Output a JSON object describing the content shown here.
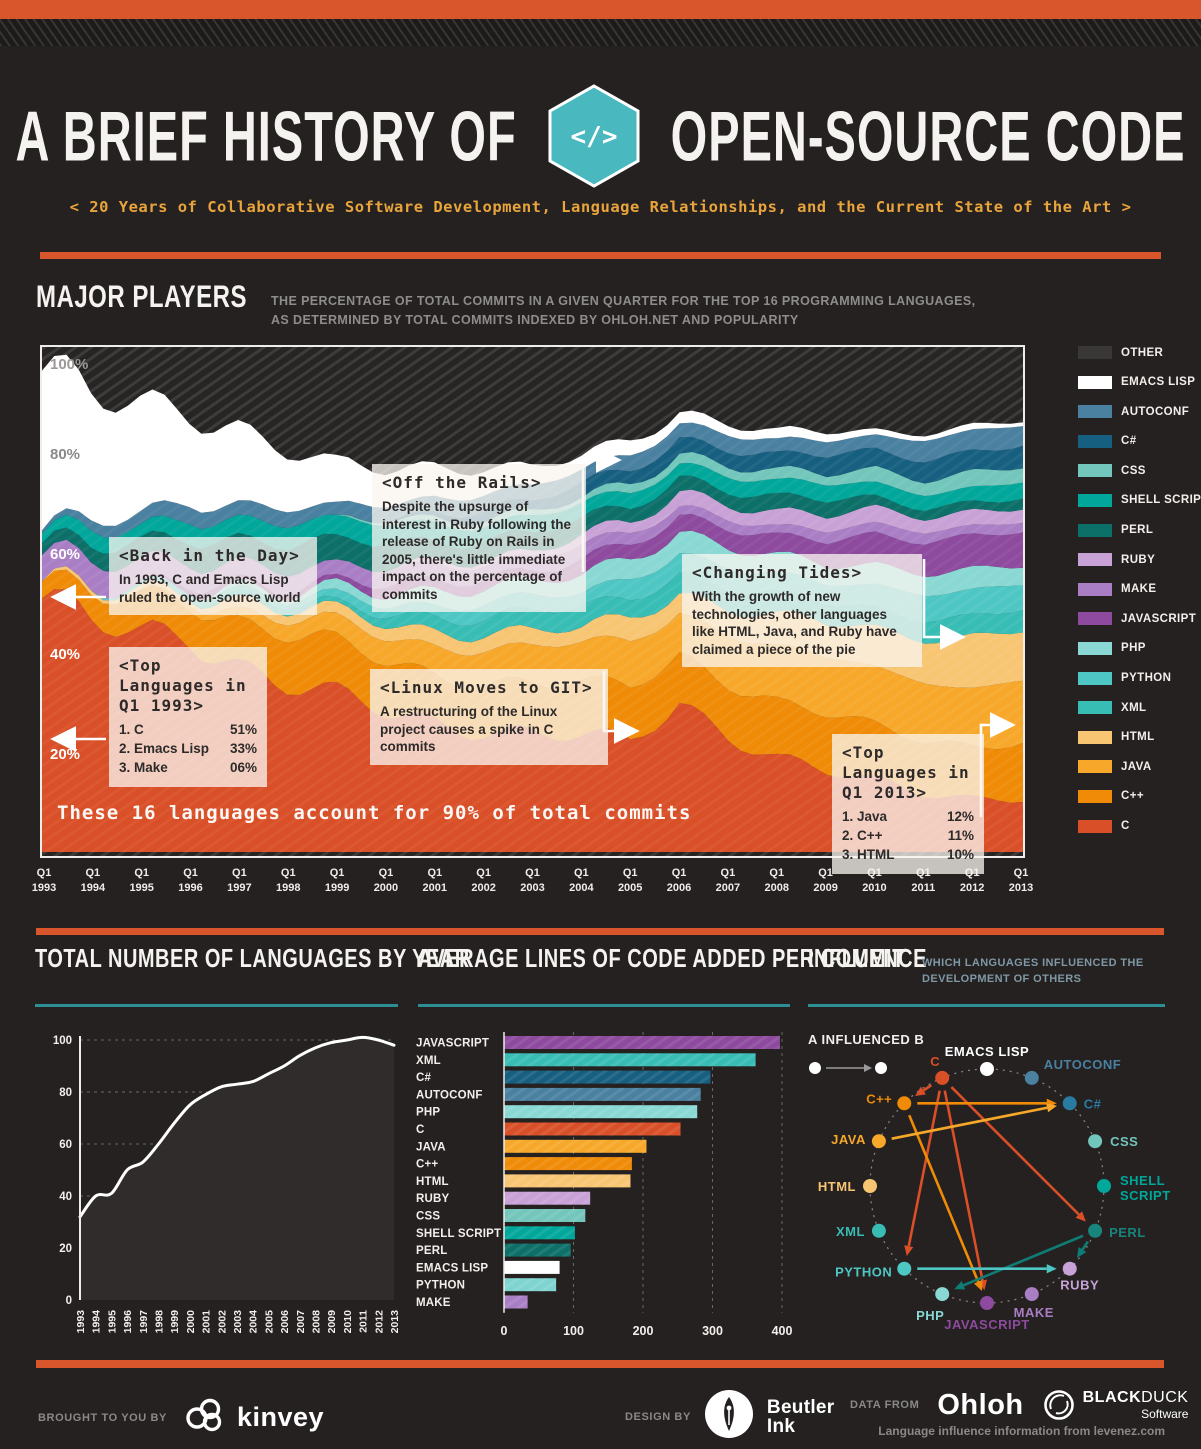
{
  "header": {
    "title_left": "A BRIEF HISTORY OF",
    "title_right": "OPEN-SOURCE CODE",
    "hex_glyph": "</>",
    "subtitle": "< 20 Years of Collaborative Software Development, Language Relationships, and the Current State of the Art >"
  },
  "major_players": {
    "title": "MAJOR PLAYERS",
    "description_line1": "THE PERCENTAGE OF TOTAL COMMITS IN A GIVEN QUARTER FOR THE TOP 16 PROGRAMMING LANGUAGES,",
    "description_line2": "AS DETERMINED BY TOTAL COMMITS INDEXED BY OHLOH.NET AND POPULARITY",
    "footnote": "These 16 languages account for 90% of total commits",
    "y_ticks": [
      "100%",
      "80%",
      "60%",
      "40%",
      "20%"
    ],
    "legend": [
      {
        "label": "OTHER",
        "color": "#3a3737"
      },
      {
        "label": "EMACS LISP",
        "color": "#ffffff"
      },
      {
        "label": "AUTOCONF",
        "color": "#4a80a0"
      },
      {
        "label": "C#",
        "color": "#175f80"
      },
      {
        "label": "CSS",
        "color": "#72c6bb"
      },
      {
        "label": "SHELL SCRIPT",
        "color": "#00a79a"
      },
      {
        "label": "PERL",
        "color": "#0c6f68"
      },
      {
        "label": "RUBY",
        "color": "#c8a2d6"
      },
      {
        "label": "MAKE",
        "color": "#aa7ec5"
      },
      {
        "label": "JAVASCRIPT",
        "color": "#8d4a9e"
      },
      {
        "label": "PHP",
        "color": "#8ad8d4"
      },
      {
        "label": "PYTHON",
        "color": "#4ec7c4"
      },
      {
        "label": "XML",
        "color": "#38bdb5"
      },
      {
        "label": "HTML",
        "color": "#f8c573"
      },
      {
        "label": "JAVA",
        "color": "#f7a82a"
      },
      {
        "label": "C++",
        "color": "#ef8b06"
      },
      {
        "label": "C",
        "color": "#d94f28"
      }
    ],
    "annotations": [
      {
        "title": "<Back in the Day>",
        "body": "In 1993, C and Emacs Lisp ruled the open-source world"
      },
      {
        "title": "<Top Languages in Q1 1993>",
        "items": [
          [
            "1. C",
            "51%"
          ],
          [
            "2. Emacs Lisp",
            "33%"
          ],
          [
            "3. Make",
            "06%"
          ]
        ]
      },
      {
        "title": "<Off the Rails>",
        "body": "Despite the upsurge of interest in Ruby following the release of Ruby on Rails in 2005, there's little immediate impact on the percentage of commits"
      },
      {
        "title": "<Linux Moves to GIT>",
        "body": "A restructuring of the Linux project causes a spike in C commits"
      },
      {
        "title": "<Changing Tides>",
        "body": "With the growth of new technologies, other languages like HTML, Java, and Ruby have claimed a piece of the pie"
      },
      {
        "title": "<Top Languages in Q1 2013>",
        "items": [
          [
            "1. Java",
            "12%"
          ],
          [
            "2. C++",
            "11%"
          ],
          [
            "3. HTML",
            "10%"
          ]
        ]
      }
    ]
  },
  "languages_by_year": {
    "title": "TOTAL NUMBER OF LANGUAGES BY YEAR"
  },
  "avg_lines": {
    "title": "AVERAGE LINES OF CODE ADDED PER COMMIT"
  },
  "influence": {
    "title": "INFLUENCE",
    "subtitle_line1": "WHICH LANGUAGES INFLUENCED THE",
    "subtitle_line2": "DEVELOPMENT OF OTHERS",
    "legend_label": "A INFLUENCED B"
  },
  "footer": {
    "brought": "BROUGHT TO YOU BY",
    "brand": "kinvey",
    "design": "DESIGN BY",
    "design_brand_line1": "Beutler",
    "design_brand_line2": "Ink",
    "data_from": "DATA FROM",
    "data_brand1": "Ohloh",
    "data_brand2_bold": "BLACK",
    "data_brand2_light": "DUCK",
    "data_brand2_sub": "Software",
    "influence_note": "Language influence information from levenez.com"
  },
  "chart_data": [
    {
      "type": "area",
      "stacked": true,
      "title": "MAJOR PLAYERS",
      "ylabel": "% of total commits in a given quarter",
      "ylim": [
        0,
        100
      ],
      "x_years": [
        1993,
        1994,
        1995,
        1996,
        1997,
        1998,
        1999,
        2000,
        2001,
        2002,
        2003,
        2004,
        2005,
        2006,
        2007,
        2008,
        2009,
        2010,
        2011,
        2012,
        2013
      ],
      "x_tick_prefix": "Q1",
      "other_layer": {
        "name": "OTHER",
        "color": "#3a3737",
        "note": "remainder to 100%"
      },
      "series": [
        {
          "name": "C",
          "color": "#d94f28",
          "values": [
            51,
            46,
            43,
            44,
            38,
            34,
            31,
            28,
            26,
            25,
            24,
            23,
            22,
            30,
            24,
            19,
            16,
            14,
            12,
            11,
            11
          ]
        },
        {
          "name": "C++",
          "color": "#ef8b06",
          "values": [
            3,
            5,
            7,
            8,
            9,
            10,
            10,
            10,
            10,
            10,
            10,
            10,
            11,
            10,
            11,
            11,
            11,
            11,
            11,
            11,
            11
          ]
        },
        {
          "name": "JAVA",
          "color": "#f7a82a",
          "values": [
            0,
            0,
            0,
            1,
            2,
            3,
            4,
            5,
            6,
            7,
            7,
            8,
            9,
            9,
            10,
            11,
            11,
            12,
            12,
            12,
            12
          ]
        },
        {
          "name": "HTML",
          "color": "#f8c573",
          "values": [
            0,
            1,
            1,
            1,
            2,
            2,
            2,
            3,
            3,
            3,
            3,
            3,
            5,
            4,
            5,
            6,
            7,
            8,
            9,
            10,
            10
          ]
        },
        {
          "name": "XML",
          "color": "#38bdb5",
          "values": [
            0,
            0,
            0,
            0,
            1,
            1,
            1,
            2,
            3,
            3,
            4,
            4,
            4,
            4,
            4,
            4,
            4,
            4,
            4,
            4,
            4
          ]
        },
        {
          "name": "PYTHON",
          "color": "#4ec7c4",
          "values": [
            0,
            0,
            1,
            1,
            1,
            1,
            2,
            2,
            2,
            3,
            3,
            3,
            4,
            4,
            4,
            4,
            4,
            5,
            5,
            5,
            5
          ]
        },
        {
          "name": "PHP",
          "color": "#8ad8d4",
          "values": [
            0,
            0,
            0,
            0,
            1,
            1,
            2,
            2,
            3,
            3,
            3,
            4,
            4,
            4,
            4,
            4,
            4,
            4,
            4,
            4,
            4
          ]
        },
        {
          "name": "JAVASCRIPT",
          "color": "#8d4a9e",
          "values": [
            0,
            0,
            0,
            1,
            1,
            1,
            1,
            2,
            2,
            2,
            2,
            3,
            3,
            3,
            4,
            4,
            5,
            6,
            6,
            7,
            7
          ]
        },
        {
          "name": "MAKE",
          "color": "#aa7ec5",
          "values": [
            6,
            5,
            5,
            4,
            4,
            4,
            3,
            3,
            3,
            3,
            3,
            3,
            2,
            2,
            2,
            2,
            2,
            2,
            2,
            2,
            2
          ]
        },
        {
          "name": "RUBY",
          "color": "#c8a2d6",
          "values": [
            0,
            0,
            0,
            0,
            0,
            0,
            0,
            0,
            1,
            1,
            1,
            2,
            2,
            3,
            3,
            3,
            3,
            3,
            3,
            3,
            3
          ]
        },
        {
          "name": "PERL",
          "color": "#0c6f68",
          "values": [
            2,
            3,
            4,
            5,
            5,
            5,
            5,
            5,
            4,
            4,
            4,
            3,
            3,
            3,
            3,
            3,
            3,
            2,
            2,
            2,
            2
          ]
        },
        {
          "name": "SHELL SCRIPT",
          "color": "#00a79a",
          "values": [
            2,
            3,
            3,
            4,
            4,
            4,
            4,
            4,
            4,
            3,
            3,
            3,
            3,
            3,
            3,
            3,
            3,
            3,
            3,
            3,
            3
          ]
        },
        {
          "name": "CSS",
          "color": "#72c6bb",
          "values": [
            0,
            0,
            0,
            0,
            0,
            0,
            0,
            1,
            1,
            1,
            1,
            1,
            2,
            2,
            2,
            2,
            2,
            3,
            3,
            3,
            3
          ]
        },
        {
          "name": "C#",
          "color": "#175f80",
          "values": [
            0,
            0,
            0,
            0,
            0,
            0,
            0,
            0,
            1,
            2,
            2,
            3,
            3,
            3,
            3,
            3,
            4,
            4,
            4,
            4,
            4
          ]
        },
        {
          "name": "AUTOCONF",
          "color": "#4a80a0",
          "values": [
            1,
            2,
            3,
            3,
            3,
            3,
            3,
            3,
            3,
            3,
            3,
            3,
            3,
            3,
            3,
            3,
            3,
            3,
            4,
            4,
            4
          ]
        },
        {
          "name": "EMACS LISP",
          "color": "#ffffff",
          "values": [
            33,
            27,
            22,
            17,
            15,
            12,
            9,
            7,
            6,
            5,
            4,
            3,
            3,
            2,
            2,
            2,
            2,
            1,
            1,
            1,
            1
          ]
        }
      ]
    },
    {
      "type": "line",
      "title": "TOTAL NUMBER OF LANGUAGES BY YEAR",
      "x": [
        1993,
        1994,
        1995,
        1996,
        1997,
        1998,
        1999,
        2000,
        2001,
        2002,
        2003,
        2004,
        2005,
        2006,
        2007,
        2008,
        2009,
        2010,
        2011,
        2012,
        2013
      ],
      "values": [
        32,
        40,
        41,
        50,
        53,
        60,
        68,
        75,
        79,
        82,
        83,
        84,
        87,
        90,
        94,
        97,
        99,
        100,
        101,
        100,
        98
      ],
      "ylim": [
        0,
        100
      ],
      "yticks": [
        0,
        20,
        40,
        60,
        80,
        100
      ],
      "line_color": "#ffffff",
      "fill_color": "#2f2c2b"
    },
    {
      "type": "bar",
      "title": "AVERAGE LINES OF CODE ADDED PER COMMIT",
      "categories": [
        "JAVASCRIPT",
        "XML",
        "C#",
        "AUTOCONF",
        "PHP",
        "C",
        "JAVA",
        "C++",
        "HTML",
        "RUBY",
        "CSS",
        "SHELL SCRIPT",
        "PERL",
        "EMACS LISP",
        "PYTHON",
        "MAKE"
      ],
      "values": [
        397,
        362,
        297,
        283,
        278,
        254,
        205,
        184,
        182,
        124,
        117,
        102,
        96,
        80,
        75,
        34
      ],
      "colors": [
        "#8d4a9e",
        "#38bdb5",
        "#175f80",
        "#4a80a0",
        "#8ad8d4",
        "#d94f28",
        "#f7a82a",
        "#ef8b06",
        "#f8c573",
        "#c8a2d6",
        "#72c6bb",
        "#00a79a",
        "#0c6f68",
        "#ffffff",
        "#7fd4d0",
        "#aa7ec5"
      ],
      "xlim": [
        0,
        400
      ],
      "xticks": [
        0,
        100,
        200,
        300,
        400
      ]
    },
    {
      "type": "network",
      "title": "INFLUENCE",
      "legend": "A INFLUENCED B",
      "nodes": [
        {
          "name": "EMACS LISP",
          "color": "#ffffff",
          "angle": 90
        },
        {
          "name": "AUTOCONF",
          "color": "#4a80a0",
          "angle": 67.5
        },
        {
          "name": "C#",
          "color": "#2a7ba2",
          "angle": 45
        },
        {
          "name": "CSS",
          "color": "#72c6bb",
          "angle": 22.5
        },
        {
          "name": "SHELL SCRIPT",
          "color": "#00a79a",
          "angle": 0
        },
        {
          "name": "PERL",
          "color": "#17857c",
          "angle": -22.5
        },
        {
          "name": "RUBY",
          "color": "#c8a2d6",
          "angle": -45
        },
        {
          "name": "MAKE",
          "color": "#aa7ec5",
          "angle": -67.5
        },
        {
          "name": "JAVASCRIPT",
          "color": "#8d4a9e",
          "angle": -90
        },
        {
          "name": "PHP",
          "color": "#8ad8d4",
          "angle": -112.5
        },
        {
          "name": "PYTHON",
          "color": "#4ec7c4",
          "angle": -135
        },
        {
          "name": "XML",
          "color": "#38bdb5",
          "angle": -157.5
        },
        {
          "name": "HTML",
          "color": "#f8c573",
          "angle": 180
        },
        {
          "name": "JAVA",
          "color": "#f7a82a",
          "angle": 157.5
        },
        {
          "name": "C++",
          "color": "#ef8b06",
          "angle": 135
        },
        {
          "name": "C",
          "color": "#d94f28",
          "angle": 112.5
        }
      ],
      "edges": [
        {
          "from": "C",
          "to": "C++"
        },
        {
          "from": "C",
          "to": "PERL"
        },
        {
          "from": "C",
          "to": "PYTHON"
        },
        {
          "from": "C",
          "to": "JAVASCRIPT"
        },
        {
          "from": "C++",
          "to": "C#"
        },
        {
          "from": "C++",
          "to": "JAVASCRIPT"
        },
        {
          "from": "JAVA",
          "to": "C#"
        },
        {
          "from": "PERL",
          "to": "PHP"
        },
        {
          "from": "PERL",
          "to": "RUBY"
        },
        {
          "from": "PYTHON",
          "to": "RUBY"
        }
      ]
    }
  ]
}
